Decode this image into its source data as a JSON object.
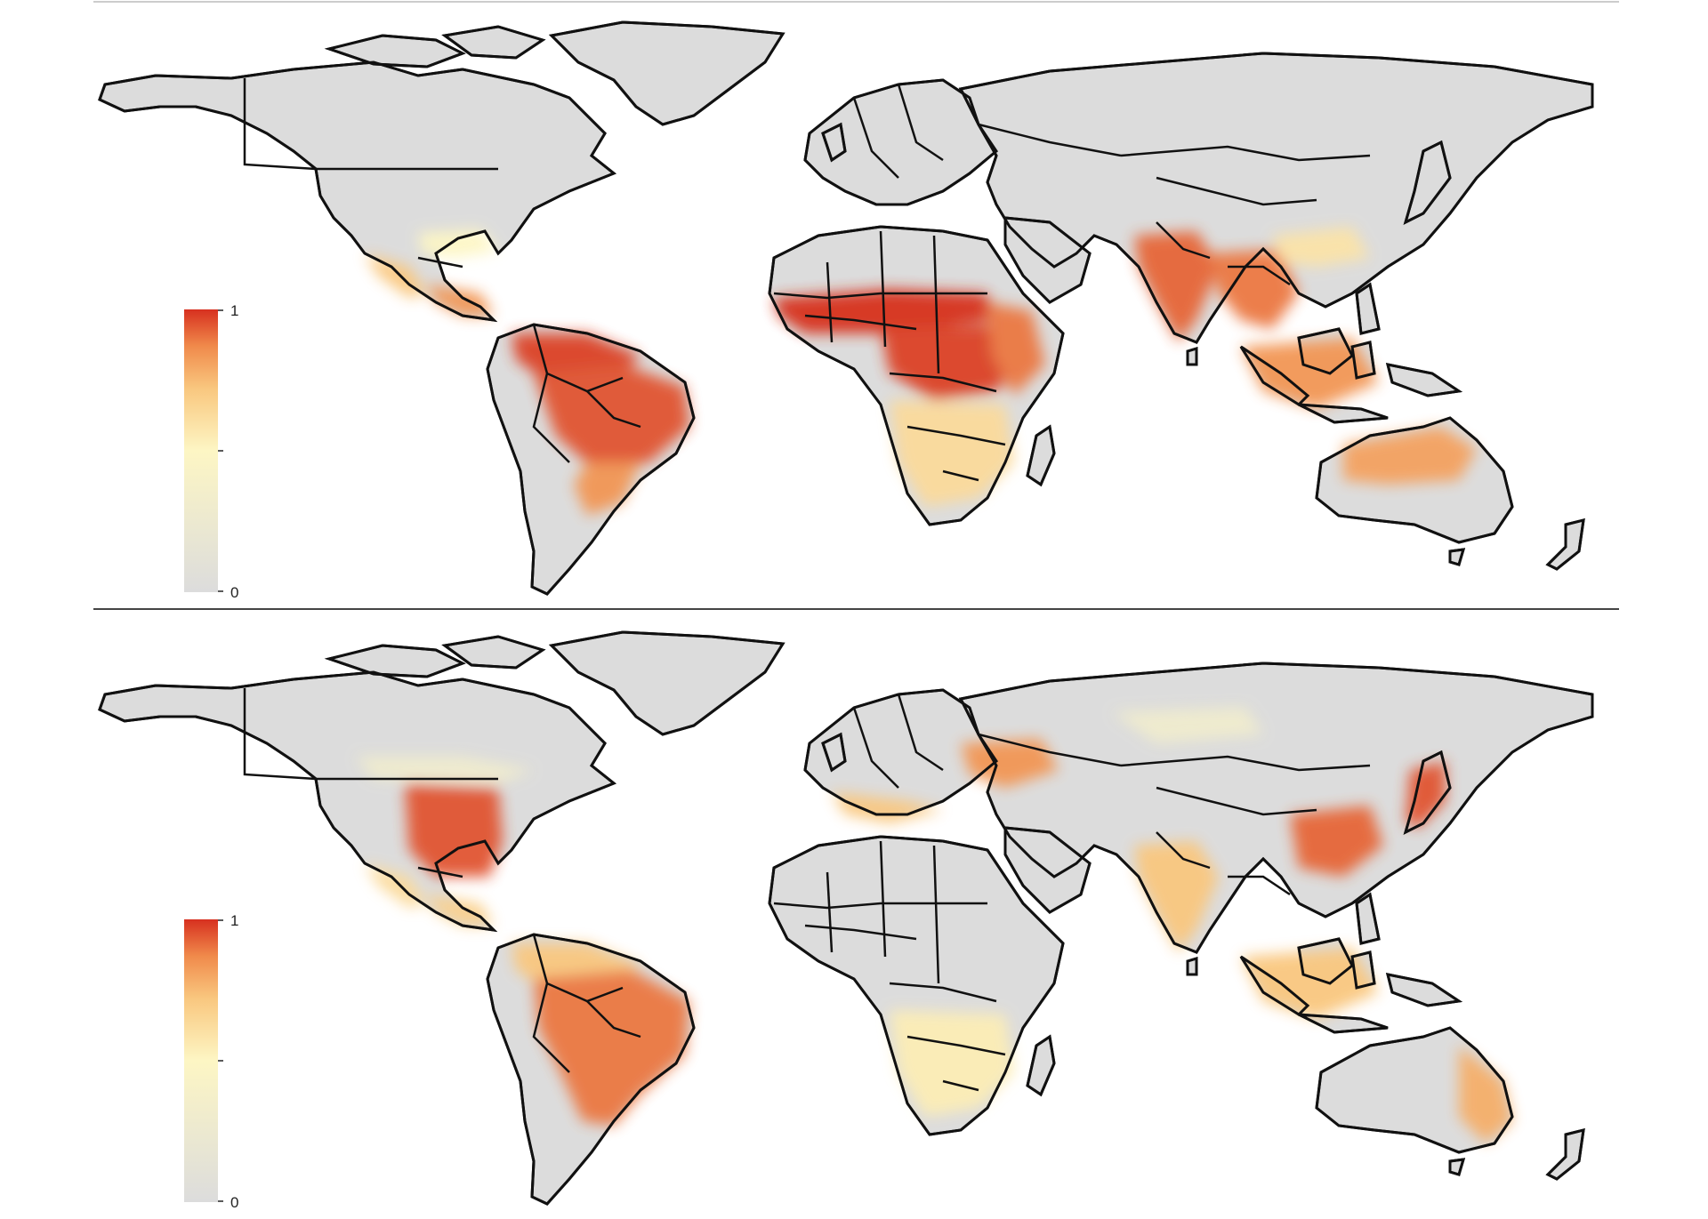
{
  "colors": {
    "land": "#dcdcdc",
    "border": "#111111",
    "ocean": "#ffffff",
    "ramp": [
      "#dcdcdc",
      "#fdf6c4",
      "#f9c77f",
      "#f08a4b",
      "#d7301f"
    ]
  },
  "panels": [
    {
      "id": "top",
      "legend": {
        "max_label": "1",
        "min_label": "0"
      },
      "hotspots": [
        {
          "region": "southeastern-united-states",
          "level": 0.25
        },
        {
          "region": "mexico",
          "level": 0.5
        },
        {
          "region": "central-america",
          "level": 0.7
        },
        {
          "region": "northern-south-america",
          "level": 0.95
        },
        {
          "region": "brazil-amazon",
          "level": 0.9
        },
        {
          "region": "brazil-south",
          "level": 0.7
        },
        {
          "region": "west-africa-sahel",
          "level": 1.0
        },
        {
          "region": "central-africa",
          "level": 0.95
        },
        {
          "region": "east-africa",
          "level": 0.8
        },
        {
          "region": "southern-africa",
          "level": 0.4
        },
        {
          "region": "india",
          "level": 0.85
        },
        {
          "region": "southeast-asia",
          "level": 0.8
        },
        {
          "region": "southern-china",
          "level": 0.35
        },
        {
          "region": "indonesia",
          "level": 0.7
        },
        {
          "region": "northern-australia",
          "level": 0.65
        }
      ]
    },
    {
      "id": "bottom",
      "legend": {
        "max_label": "1",
        "min_label": "0"
      },
      "hotspots": [
        {
          "region": "southern-canada",
          "level": 0.15
        },
        {
          "region": "eastern-united-states",
          "level": 0.9
        },
        {
          "region": "mexico",
          "level": 0.4
        },
        {
          "region": "central-america",
          "level": 0.45
        },
        {
          "region": "northern-south-america",
          "level": 0.5
        },
        {
          "region": "brazil",
          "level": 0.8
        },
        {
          "region": "southern-europe",
          "level": 0.5
        },
        {
          "region": "black-sea-region",
          "level": 0.7
        },
        {
          "region": "central-russia",
          "level": 0.15
        },
        {
          "region": "southern-africa",
          "level": 0.3
        },
        {
          "region": "india",
          "level": 0.5
        },
        {
          "region": "eastern-china",
          "level": 0.85
        },
        {
          "region": "japan",
          "level": 0.9
        },
        {
          "region": "indonesia",
          "level": 0.5
        },
        {
          "region": "eastern-australia",
          "level": 0.6
        }
      ]
    }
  ]
}
